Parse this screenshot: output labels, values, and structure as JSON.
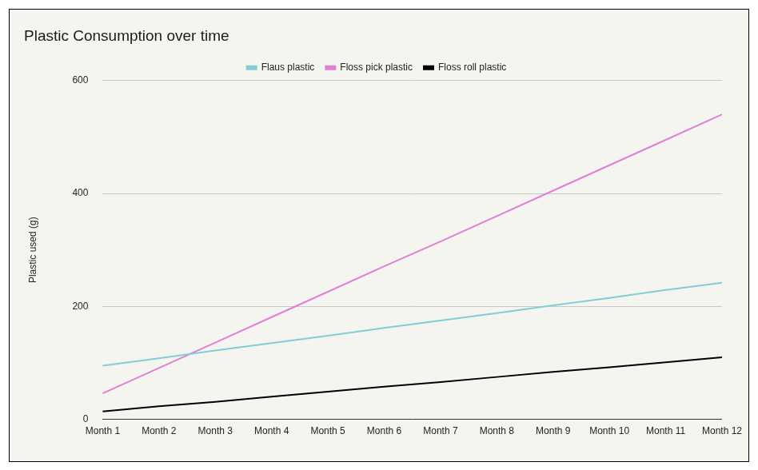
{
  "chart_data": {
    "type": "line",
    "title": "Plastic Consumption over time",
    "y_label": "Plastic used (g)",
    "categories": [
      "Month 1",
      "Month 2",
      "Month 3",
      "Month 4",
      "Month 5",
      "Month 6",
      "Month 7",
      "Month 8",
      "Month 9",
      "Month 10",
      "Month 11",
      "Month 12"
    ],
    "series": [
      {
        "name": "Flaus plastic",
        "color": "#80cfd6",
        "values": [
          95,
          108,
          122,
          135,
          148,
          162,
          175,
          188,
          202,
          215,
          229,
          242
        ]
      },
      {
        "name": "Floss pick plastic",
        "color": "#e07fd6",
        "values": [
          46,
          91,
          136,
          181,
          226,
          271,
          315,
          360,
          405,
          450,
          495,
          540
        ]
      },
      {
        "name": "Floss roll plastic",
        "color": "#000000",
        "values": [
          14,
          23,
          31,
          40,
          49,
          58,
          66,
          75,
          84,
          92,
          101,
          110
        ]
      }
    ],
    "ylim": [
      0,
      600
    ],
    "yticks": [
      0,
      200,
      400,
      600
    ],
    "grid": true,
    "legend": "top"
  }
}
